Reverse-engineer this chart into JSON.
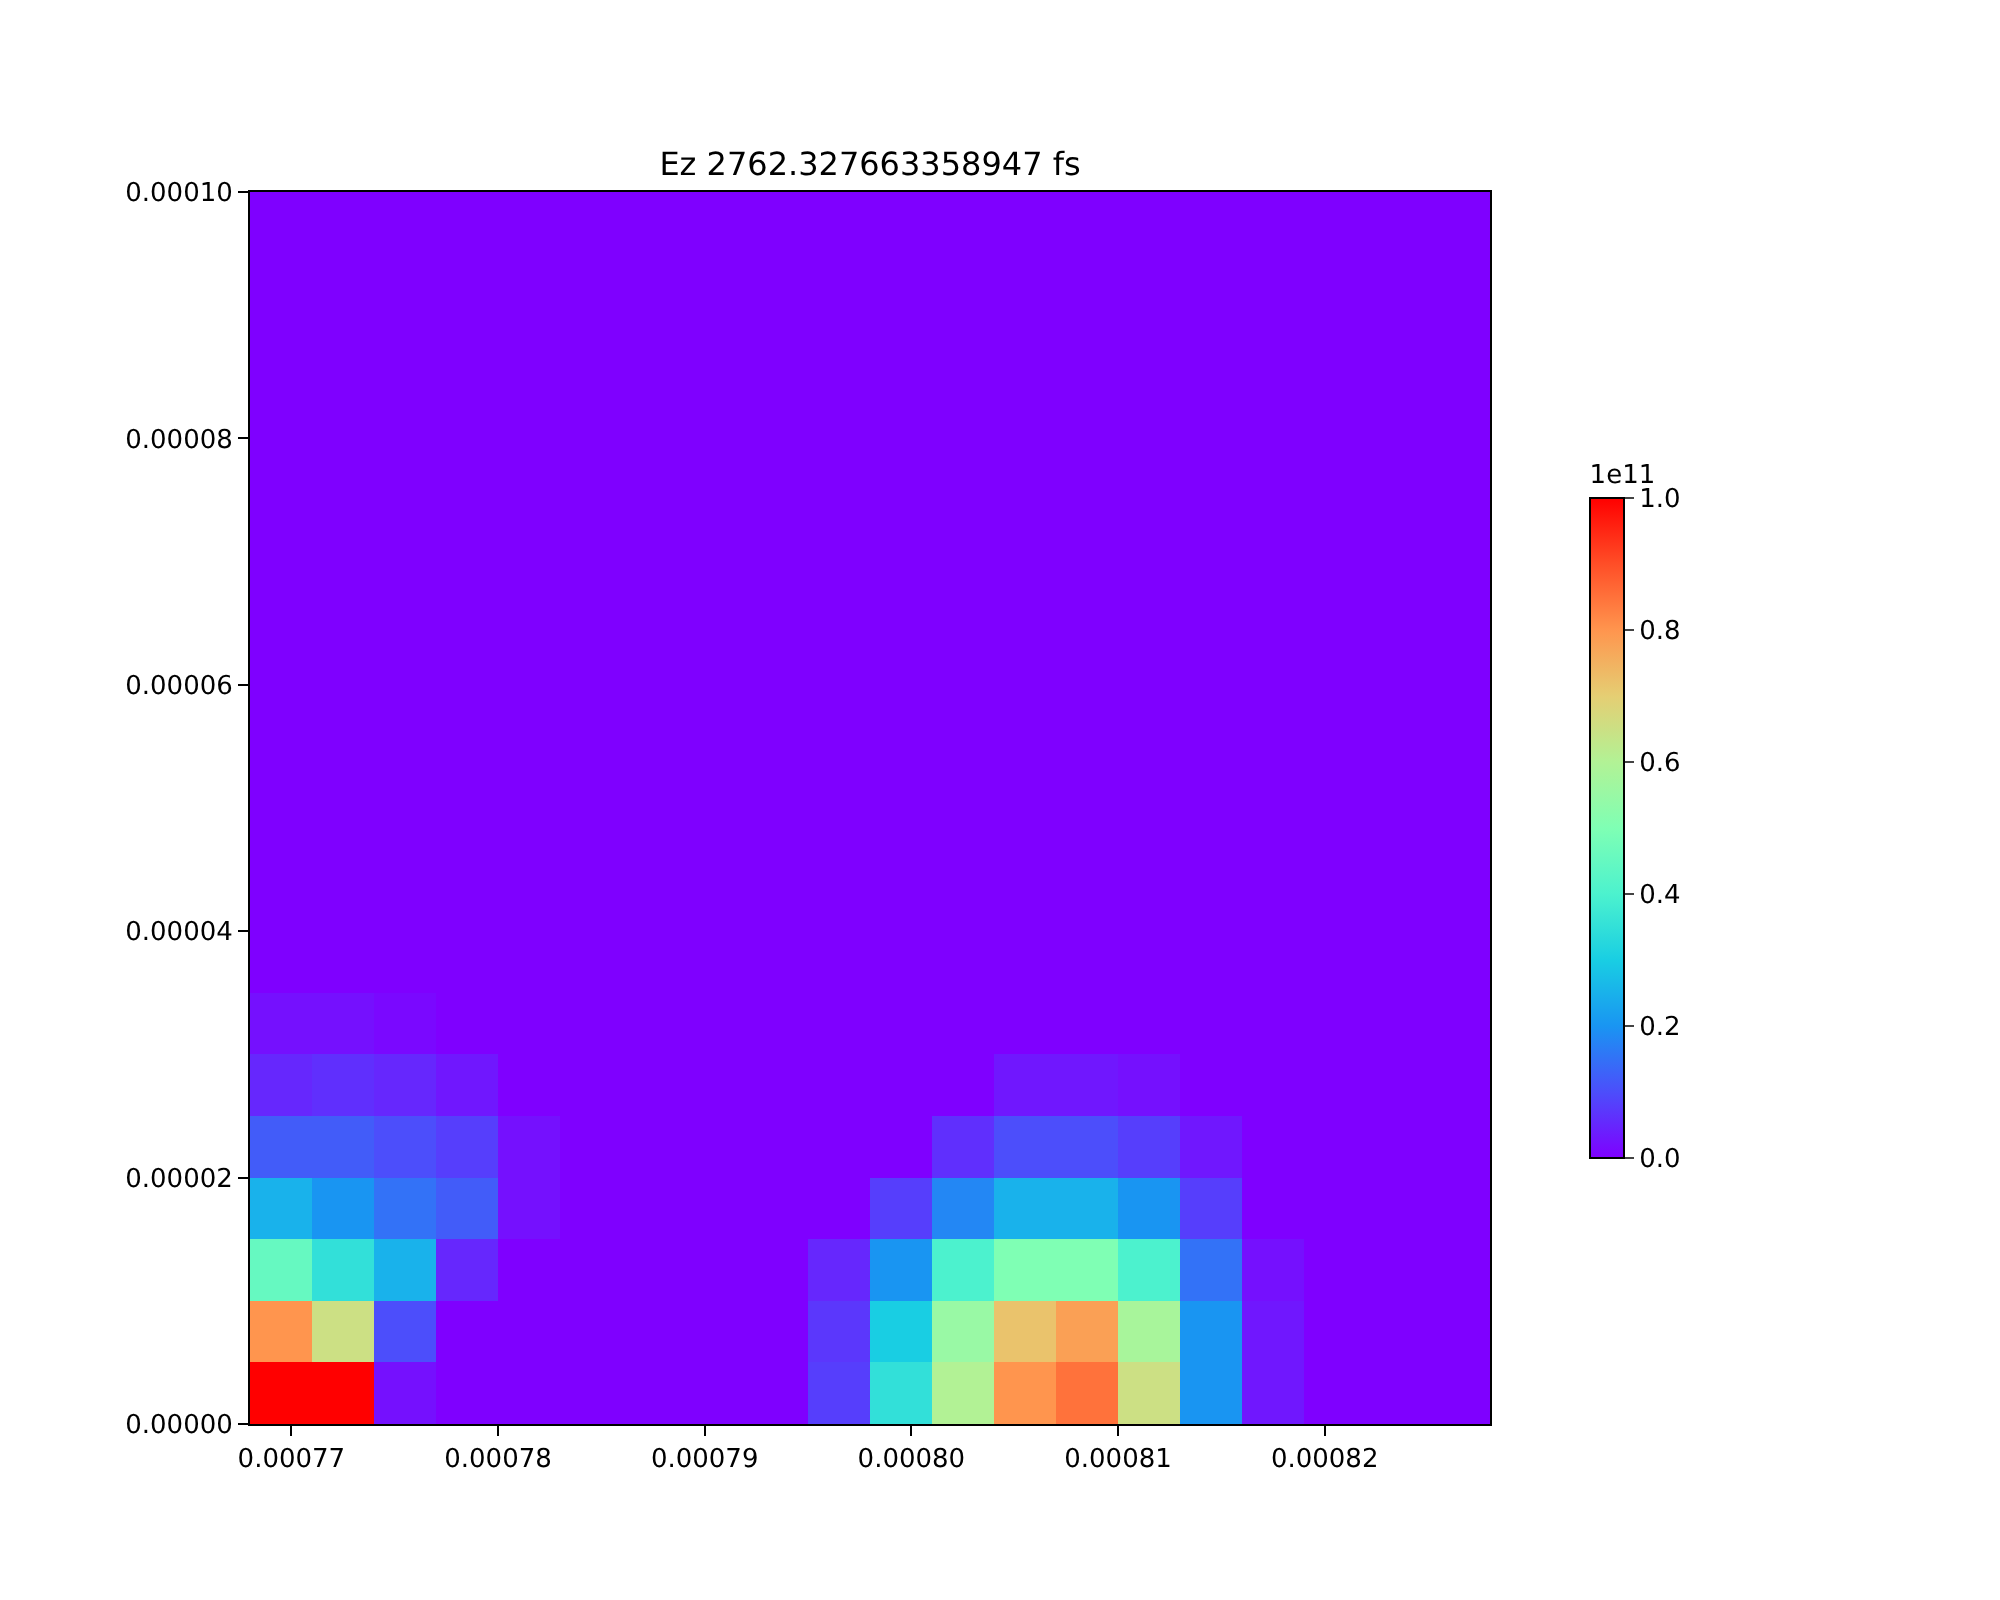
{
  "chart_data": {
    "type": "heatmap",
    "title": "Ez 2762.327663358947 fs",
    "clabel": "1e11",
    "x": [
      0.0007695,
      0.0007725,
      0.0007755,
      0.0007785,
      0.0007815,
      0.0007845,
      0.0007875,
      0.0007905,
      0.0007935,
      0.0007965,
      0.0007995,
      0.0008025,
      0.0008055,
      0.0008085,
      0.0008115,
      0.0008145,
      0.0008175,
      0.0008205,
      0.0008235,
      0.0008265
    ],
    "y": [
      9.75e-05,
      9.25e-05,
      8.75e-05,
      8.25e-05,
      7.75e-05,
      7.25e-05,
      6.75e-05,
      6.25e-05,
      5.75e-05,
      5.25e-05,
      4.75e-05,
      4.25e-05,
      3.75e-05,
      3.25e-05,
      2.75e-05,
      2.25e-05,
      1.75e-05,
      1.25e-05,
      7.5e-06,
      2.5e-06
    ],
    "cells": [
      [
        0,
        0,
        0,
        0,
        0,
        0,
        0,
        0,
        0,
        0,
        0,
        0,
        0,
        0,
        0,
        0,
        0,
        0,
        0,
        0
      ],
      [
        0,
        0,
        0,
        0,
        0,
        0,
        0,
        0,
        0,
        0,
        0,
        0,
        0,
        0,
        0,
        0,
        0,
        0,
        0,
        0
      ],
      [
        0,
        0,
        0,
        0,
        0,
        0,
        0,
        0,
        0,
        0,
        0,
        0,
        0,
        0,
        0,
        0,
        0,
        0,
        0,
        0
      ],
      [
        0,
        0,
        0,
        0,
        0,
        0,
        0,
        0,
        0,
        0,
        0,
        0,
        0,
        0,
        0,
        0,
        0,
        0,
        0,
        0
      ],
      [
        0,
        0,
        0,
        0,
        0,
        0,
        0,
        0,
        0,
        0,
        0,
        0,
        0,
        0,
        0,
        0,
        0,
        0,
        0,
        0
      ],
      [
        0,
        0,
        0,
        0,
        0,
        0,
        0,
        0,
        0,
        0,
        0,
        0,
        0,
        0,
        0,
        0,
        0,
        0,
        0,
        0
      ],
      [
        0,
        0,
        0,
        0,
        0,
        0,
        0,
        0,
        0,
        0,
        0,
        0,
        0,
        0,
        0,
        0,
        0,
        0,
        0,
        0
      ],
      [
        0,
        0,
        0,
        0,
        0,
        0,
        0,
        0,
        0,
        0,
        0,
        0,
        0,
        0,
        0,
        0,
        0,
        0,
        0,
        0
      ],
      [
        0,
        0,
        0,
        0,
        0,
        0,
        0,
        0,
        0,
        0,
        0,
        0,
        0,
        0,
        0,
        0,
        0,
        0,
        0,
        0
      ],
      [
        0,
        0,
        0,
        0,
        0,
        0,
        0,
        0,
        0,
        0,
        0,
        0,
        0,
        0,
        0,
        0,
        0,
        0,
        0,
        0
      ],
      [
        0,
        0,
        0,
        0,
        0,
        0,
        0,
        0,
        0,
        0,
        0,
        0,
        0,
        0,
        0,
        0,
        0,
        0,
        0,
        0
      ],
      [
        0,
        0,
        0,
        0,
        0,
        0,
        0,
        0,
        0,
        0,
        0,
        0,
        0,
        0,
        0,
        0,
        0,
        0,
        0,
        0
      ],
      [
        0,
        0,
        0,
        0,
        0,
        0,
        0,
        0,
        0,
        0,
        0,
        0,
        0,
        0,
        0,
        0,
        0,
        0,
        0,
        0
      ],
      [
        0.02,
        0.02,
        0.01,
        0,
        0,
        0,
        0,
        0,
        0,
        0,
        0,
        0,
        0,
        0,
        0,
        0,
        0,
        0,
        0,
        0
      ],
      [
        0.05,
        0.06,
        0.05,
        0.03,
        0,
        0,
        0,
        0,
        0,
        0,
        0,
        0,
        0.03,
        0.03,
        0.02,
        0,
        0,
        0,
        0,
        0
      ],
      [
        0.12,
        0.12,
        0.1,
        0.08,
        0.02,
        0,
        0,
        0,
        0,
        0,
        0,
        0.06,
        0.1,
        0.1,
        0.08,
        0.03,
        0,
        0,
        0,
        0
      ],
      [
        0.25,
        0.2,
        0.15,
        0.12,
        0.02,
        0,
        0,
        0,
        0,
        0,
        0.08,
        0.18,
        0.25,
        0.25,
        0.2,
        0.08,
        0,
        0,
        0,
        0
      ],
      [
        0.45,
        0.35,
        0.25,
        0.05,
        0,
        0,
        0,
        0,
        0,
        0.05,
        0.2,
        0.4,
        0.5,
        0.5,
        0.4,
        0.15,
        0.02,
        0,
        0,
        0
      ],
      [
        0.8,
        0.65,
        0.1,
        0,
        0,
        0,
        0,
        0,
        0,
        0.07,
        0.3,
        0.55,
        0.72,
        0.78,
        0.58,
        0.2,
        0.03,
        0,
        0,
        0
      ],
      [
        1.0,
        1.0,
        0.02,
        0,
        0,
        0,
        0,
        0,
        0,
        0.08,
        0.35,
        0.6,
        0.8,
        0.85,
        0.65,
        0.2,
        0.03,
        0,
        0,
        0
      ]
    ],
    "xlim": [
      0.000768,
      0.000828
    ],
    "xticks": [
      {
        "value": 0.00077,
        "label": "0.00077"
      },
      {
        "value": 0.00078,
        "label": "0.00078"
      },
      {
        "value": 0.00079,
        "label": "0.00079"
      },
      {
        "value": 0.0008,
        "label": "0.00080"
      },
      {
        "value": 0.00081,
        "label": "0.00081"
      },
      {
        "value": 0.00082,
        "label": "0.00082"
      }
    ],
    "ylim": [
      0,
      0.0001
    ],
    "yticks": [
      {
        "value": 0,
        "label": "0.00000"
      },
      {
        "value": 2e-05,
        "label": "0.00002"
      },
      {
        "value": 4e-05,
        "label": "0.00004"
      },
      {
        "value": 6e-05,
        "label": "0.00006"
      },
      {
        "value": 8e-05,
        "label": "0.00008"
      },
      {
        "value": 0.0001,
        "label": "0.00010"
      }
    ],
    "clim": [
      0,
      1
    ],
    "cticks": [
      {
        "value": 0,
        "label": "0.0"
      },
      {
        "value": 0.2,
        "label": "0.2"
      },
      {
        "value": 0.4,
        "label": "0.4"
      },
      {
        "value": 0.6,
        "label": "0.6"
      },
      {
        "value": 0.8,
        "label": "0.8"
      },
      {
        "value": 1,
        "label": "1.0"
      }
    ]
  }
}
